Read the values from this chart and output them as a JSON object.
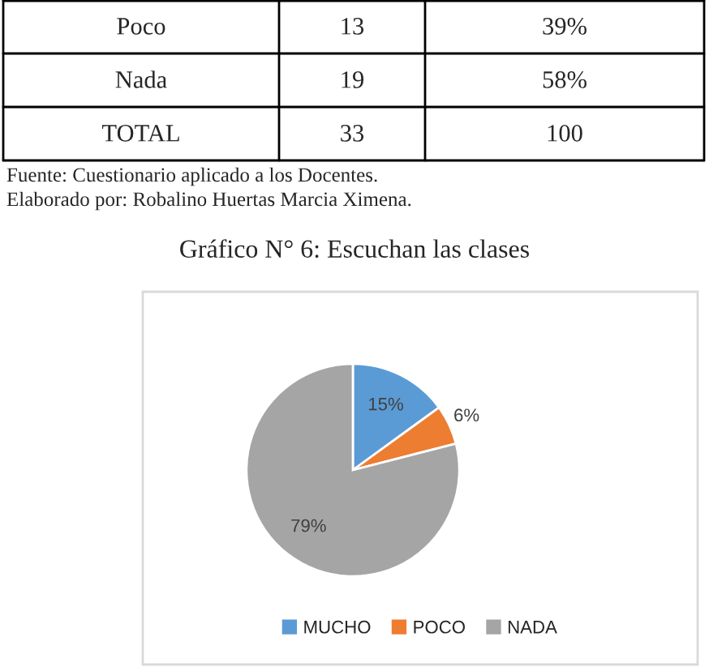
{
  "chart_data": [
    {
      "type": "other",
      "annotations": [
        "Poco",
        "13",
        "39%",
        "Nada",
        "19",
        "58%",
        "TOTAL",
        "33",
        "100",
        "Fuente: Cuestionario aplicado a los Docentes.",
        "Elaborado por: Robalino Huertas Marcia Ximena."
      ]
    },
    {
      "type": "pie",
      "title": "Gráfico N° 6: Escuchan las clases",
      "categories": [
        "MUCHO",
        "POCO",
        "NADA"
      ],
      "values": [
        15,
        6,
        79
      ],
      "colors": [
        "#5b9bd5",
        "#ed7d31",
        "#a5a5a5"
      ],
      "value_labels": [
        "15%",
        "6%",
        "79%"
      ],
      "legend": "bottom"
    }
  ]
}
